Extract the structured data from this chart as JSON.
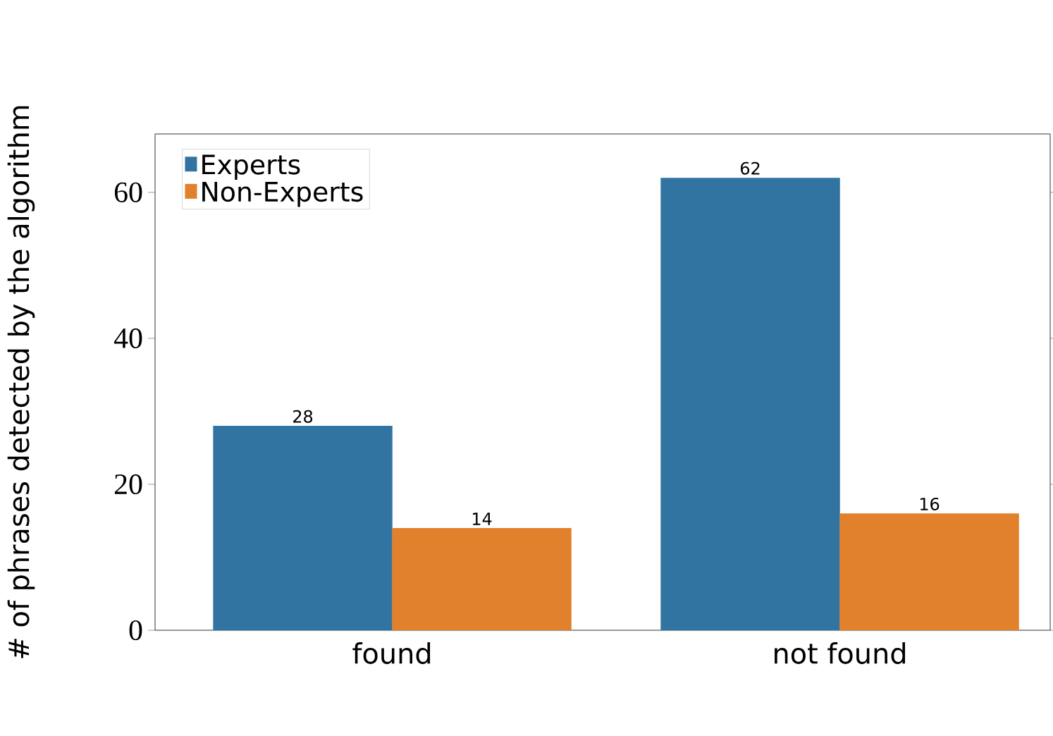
{
  "chart_data": {
    "type": "bar",
    "ylabel": "# of phrases detected by the algorithm",
    "categories": [
      "found",
      "not found"
    ],
    "series": [
      {
        "name": "Experts",
        "color": "#3274a1",
        "values": [
          28,
          62
        ]
      },
      {
        "name": "Non-Experts",
        "color": "#e1812c",
        "values": [
          14,
          16
        ]
      }
    ],
    "ylim": [
      0,
      68
    ],
    "yticks": [
      0,
      20,
      40,
      60
    ],
    "data_labels": true,
    "legend": "top left",
    "grid": false
  }
}
